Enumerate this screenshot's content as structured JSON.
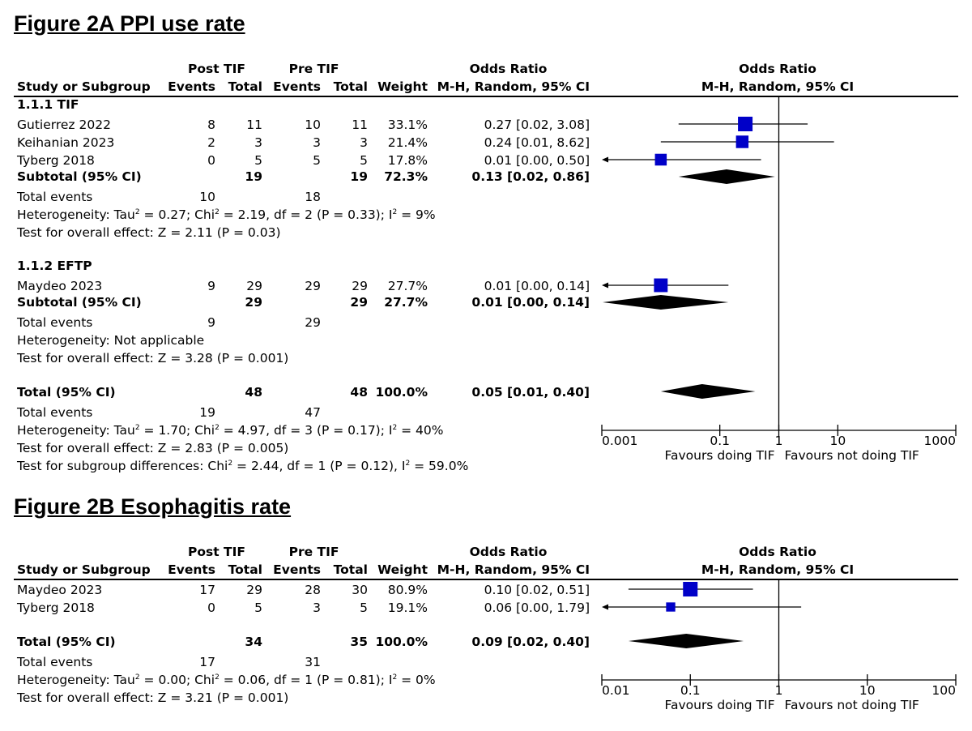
{
  "chart_data": [
    {
      "type": "forest",
      "title": "Figure 2A PPI use rate",
      "headers": {
        "group1": "Post TIF",
        "group2": "Pre TIF",
        "study": "Study or Subgroup",
        "events": "Events",
        "total": "Total",
        "weight": "Weight",
        "or": "Odds Ratio",
        "method": "M-H, Random, 95% CI",
        "plot_title": "Odds Ratio",
        "plot_method": "M-H, Random, 95% CI"
      },
      "subgroups": [
        {
          "label": "1.1.1 TIF",
          "studies": [
            {
              "name": "Gutierrez 2022",
              "e1": "8",
              "n1": "11",
              "e2": "10",
              "n2": "11",
              "weight": "33.1%",
              "ci_text": "0.27 [0.02, 3.08]",
              "or": 0.27,
              "lo": 0.02,
              "hi": 3.08,
              "w": 33.1
            },
            {
              "name": "Keihanian 2023",
              "e1": "2",
              "n1": "3",
              "e2": "3",
              "n2": "3",
              "weight": "21.4%",
              "ci_text": "0.24 [0.01, 8.62]",
              "or": 0.24,
              "lo": 0.01,
              "hi": 8.62,
              "w": 21.4
            },
            {
              "name": "Tyberg 2018",
              "e1": "0",
              "n1": "5",
              "e2": "5",
              "n2": "5",
              "weight": "17.8%",
              "ci_text": "0.01 [0.00, 0.50]",
              "or": 0.01,
              "lo": 0.0005,
              "hi": 0.5,
              "w": 17.8
            }
          ],
          "subtotal": {
            "label": "Subtotal (95% CI)",
            "n1": "19",
            "n2": "19",
            "weight": "72.3%",
            "ci_text": "0.13 [0.02, 0.86]",
            "or": 0.13,
            "lo": 0.02,
            "hi": 0.86
          },
          "total_events": {
            "label": "Total events",
            "e1": "10",
            "e2": "18"
          },
          "heterogeneity": {
            "prefix": "Heterogeneity: Tau",
            "tau2": "= 0.27; Chi",
            "chi2": "= 2.19, df = 2 (P = 0.33); I",
            "i2": "= 9%"
          },
          "overall": "Test for overall effect: Z = 2.11 (P = 0.03)"
        },
        {
          "label": "1.1.2 EFTP",
          "studies": [
            {
              "name": "Maydeo 2023",
              "e1": "9",
              "n1": "29",
              "e2": "29",
              "n2": "29",
              "weight": "27.7%",
              "ci_text": "0.01 [0.00, 0.14]",
              "or": 0.01,
              "lo": 0.0005,
              "hi": 0.14,
              "w": 27.7
            }
          ],
          "subtotal": {
            "label": "Subtotal (95% CI)",
            "n1": "29",
            "n2": "29",
            "weight": "27.7%",
            "ci_text": "0.01 [0.00, 0.14]",
            "or": 0.01,
            "lo": 0.0005,
            "hi": 0.14
          },
          "total_events": {
            "label": "Total events",
            "e1": "9",
            "e2": "29"
          },
          "heterogeneity_text": "Heterogeneity: Not applicable",
          "overall": "Test for overall effect: Z = 3.28 (P = 0.001)"
        }
      ],
      "total": {
        "label": "Total (95% CI)",
        "n1": "48",
        "n2": "48",
        "weight": "100.0%",
        "ci_text": "0.05 [0.01, 0.40]",
        "or": 0.05,
        "lo": 0.01,
        "hi": 0.4
      },
      "total_events": {
        "label": "Total events",
        "e1": "19",
        "e2": "47"
      },
      "heterogeneity": {
        "prefix": "Heterogeneity: Tau",
        "tau2": "= 1.70; Chi",
        "chi2": "= 4.97, df = 3 (P = 0.17); I",
        "i2": "= 40%"
      },
      "overall": "Test for overall effect: Z = 2.83 (P = 0.005)",
      "subgroup_diff": {
        "prefix": "Test for subgroup differences: Chi",
        "chi2": "= 2.44, df = 1 (P = 0.12), I",
        "i2": "= 59.0%"
      },
      "axis": {
        "scale": "log",
        "min": 0.001,
        "max": 1000,
        "ticks": [
          "0.001",
          "0.1",
          "1",
          "10",
          "1000"
        ],
        "tick_values": [
          0.001,
          0.1,
          1,
          10,
          1000
        ],
        "left_label": "Favours doing TIF",
        "right_label": "Favours not doing TIF"
      }
    },
    {
      "type": "forest",
      "title": "Figure 2B Esophagitis rate",
      "headers": {
        "group1": "Post TIF",
        "group2": "Pre TIF",
        "study": "Study or Subgroup",
        "events": "Events",
        "total": "Total",
        "weight": "Weight",
        "or": "Odds Ratio",
        "method": "M-H, Random, 95% CI",
        "plot_title": "Odds Ratio",
        "plot_method": "M-H, Random, 95% CI"
      },
      "studies": [
        {
          "name": "Maydeo 2023",
          "e1": "17",
          "n1": "29",
          "e2": "28",
          "n2": "30",
          "weight": "80.9%",
          "ci_text": "0.10 [0.02, 0.51]",
          "or": 0.1,
          "lo": 0.02,
          "hi": 0.51,
          "w": 80.9
        },
        {
          "name": "Tyberg 2018",
          "e1": "0",
          "n1": "5",
          "e2": "3",
          "n2": "5",
          "weight": "19.1%",
          "ci_text": "0.06 [0.00, 1.79]",
          "or": 0.06,
          "lo": 0.005,
          "hi": 1.79,
          "w": 19.1
        }
      ],
      "total": {
        "label": "Total (95% CI)",
        "n1": "34",
        "n2": "35",
        "weight": "100.0%",
        "ci_text": "0.09 [0.02, 0.40]",
        "or": 0.09,
        "lo": 0.02,
        "hi": 0.4
      },
      "total_events": {
        "label": "Total events",
        "e1": "17",
        "e2": "31"
      },
      "heterogeneity": {
        "prefix": "Heterogeneity: Tau",
        "tau2": "= 0.00; Chi",
        "chi2": "= 0.06, df = 1 (P = 0.81); I",
        "i2": "= 0%"
      },
      "overall": "Test for overall effect: Z = 3.21 (P = 0.001)",
      "axis": {
        "scale": "log",
        "min": 0.01,
        "max": 100,
        "ticks": [
          "0.01",
          "0.1",
          "1",
          "10",
          "100"
        ],
        "tick_values": [
          0.01,
          0.1,
          1,
          10,
          100
        ],
        "left_label": "Favours doing TIF",
        "right_label": "Favours not doing TIF"
      }
    }
  ],
  "colors": {
    "marker": "#0000c8",
    "diamond": "#000000",
    "text": "#000000"
  }
}
